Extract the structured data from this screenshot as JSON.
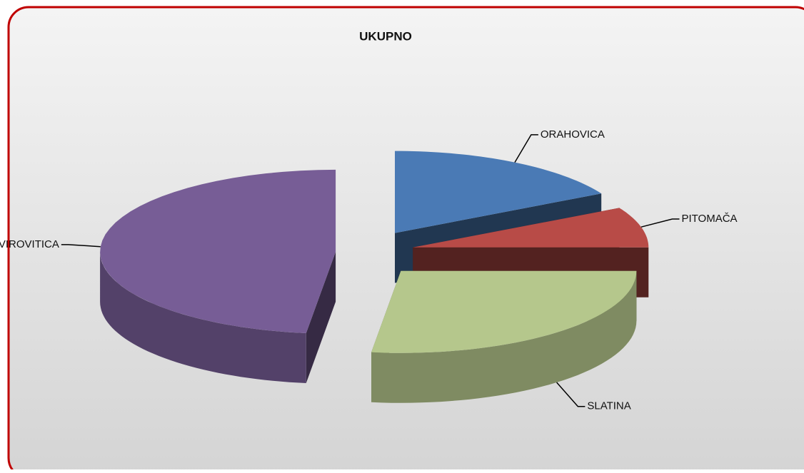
{
  "chart_data": {
    "type": "pie",
    "title": "UKUPNO",
    "categories": [
      "ORAHOVICA",
      "PITOMAČA",
      "SLATINA",
      "VIROVITICA"
    ],
    "values": [
      17,
      8,
      27,
      48
    ],
    "colors": [
      "#4a7ab5",
      "#b84b47",
      "#b5c78c",
      "#775d96"
    ]
  }
}
